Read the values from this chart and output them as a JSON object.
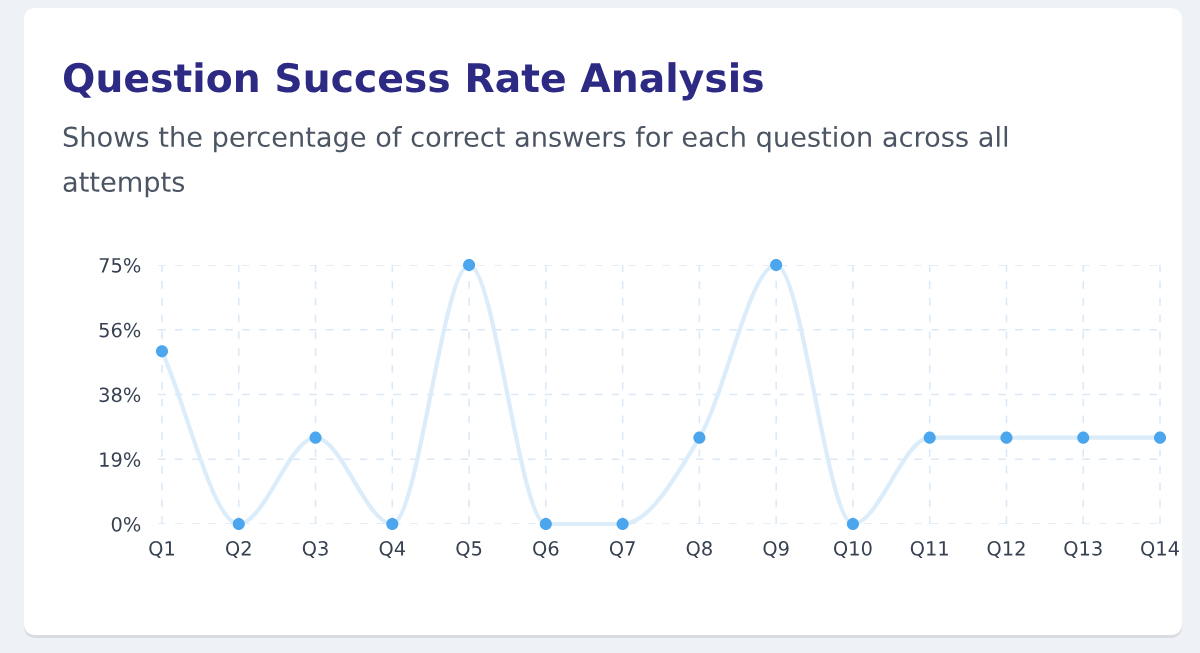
{
  "chart_data": {
    "type": "line",
    "title": "Question Success Rate Analysis",
    "subtitle": "Shows the percentage of correct answers for each question across all attempts",
    "categories": [
      "Q1",
      "Q2",
      "Q3",
      "Q4",
      "Q5",
      "Q6",
      "Q7",
      "Q8",
      "Q9",
      "Q10",
      "Q11",
      "Q12",
      "Q13",
      "Q14"
    ],
    "series": [
      {
        "color": "#4ba6ed",
        "values": [
          50,
          0,
          25,
          0,
          75,
          0,
          0,
          25,
          75,
          0,
          25,
          25,
          25,
          25
        ]
      }
    ],
    "ylim": [
      0,
      75
    ],
    "yticks": [
      {
        "value": 0,
        "label": "0%"
      },
      {
        "value": 18.75,
        "label": "19%"
      },
      {
        "value": 37.5,
        "label": "38%"
      },
      {
        "value": 56.25,
        "label": "56%"
      },
      {
        "value": 75,
        "label": "75%"
      }
    ],
    "grid": true,
    "marker": "circle",
    "line_style": "solid"
  }
}
